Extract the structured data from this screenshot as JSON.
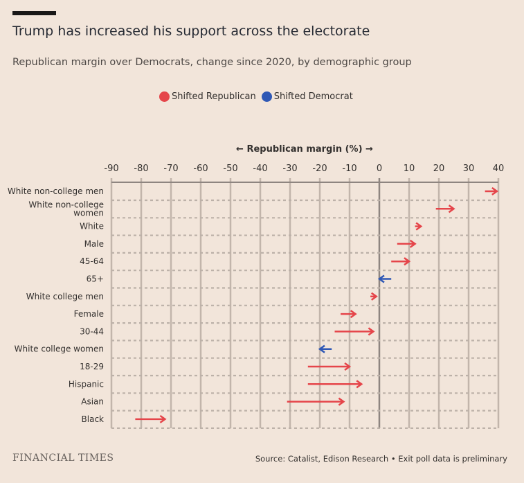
{
  "header": {
    "title": "Trump has increased his support across the electorate",
    "subtitle": "Republican margin over Democrats, change since 2020, by demographic group"
  },
  "legend": [
    {
      "label": "Shifted Republican",
      "color": "#e5454a"
    },
    {
      "label": "Shifted Democrat",
      "color": "#2f58b5"
    }
  ],
  "chart_data": {
    "type": "arrow",
    "xlabel": "← Republican margin (%) →",
    "xlim": [
      -90,
      40
    ],
    "xticks": [
      -90,
      -80,
      -70,
      -60,
      -50,
      -40,
      -30,
      -20,
      -10,
      0,
      10,
      20,
      30,
      40
    ],
    "categories": [
      "White non-college men",
      "White non-college women",
      "White",
      "Male",
      "45-64",
      "65+",
      "White college men",
      "Female",
      "30-44",
      "White college women",
      "18-29",
      "Hispanic",
      "Asian",
      "Black"
    ],
    "from_2020": [
      35.5,
      19,
      12,
      6,
      4,
      4,
      -3,
      -13,
      -15,
      -16,
      -24,
      -24,
      -31,
      -82
    ],
    "to_2024": [
      39.5,
      25,
      14,
      12,
      10,
      0,
      -1,
      -8,
      -2,
      -20,
      -10,
      -6,
      -12,
      -72
    ],
    "grid": true
  },
  "footer": {
    "logo": "FINANCIAL TIMES",
    "source": "Source: Catalist, Edison Research • Exit poll data is preliminary"
  }
}
